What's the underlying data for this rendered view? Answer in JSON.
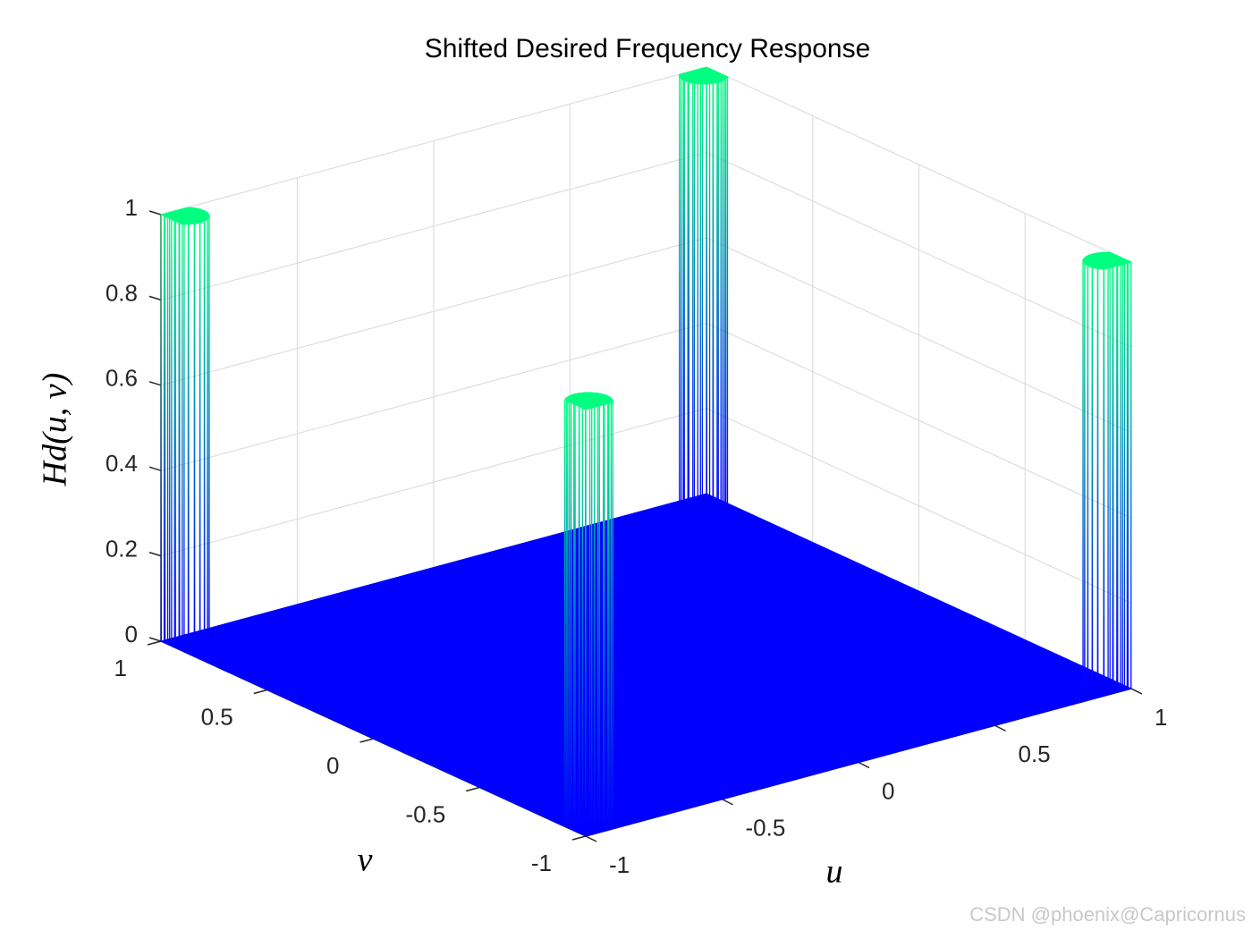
{
  "chart_data": {
    "type": "surface3d",
    "title": "Shifted Desired Frequency Response",
    "xlabel": "u",
    "ylabel": "v",
    "zlabel": "Hd(u, v)",
    "x": [
      -0.95,
      0.95,
      0.95,
      -0.95
    ],
    "y": [
      -0.95,
      -0.95,
      0.95,
      0.95
    ],
    "z": [
      1,
      1,
      1,
      1
    ],
    "floor": 0,
    "peak_radius": 0.07,
    "xlim": [
      -1,
      1
    ],
    "ylim": [
      -1,
      1
    ],
    "zlim": [
      0,
      1
    ],
    "xticks": [
      -1,
      -0.5,
      0,
      0.5,
      1
    ],
    "yticks": [
      -1,
      -0.5,
      0,
      0.5,
      1
    ],
    "zticks": [
      0,
      0.2,
      0.4,
      0.6,
      0.8,
      1
    ],
    "colormap": [
      "#0000ff",
      "#00ff80"
    ],
    "grid": true
  },
  "watermark": "CSDN @phoenix@Capricornus"
}
